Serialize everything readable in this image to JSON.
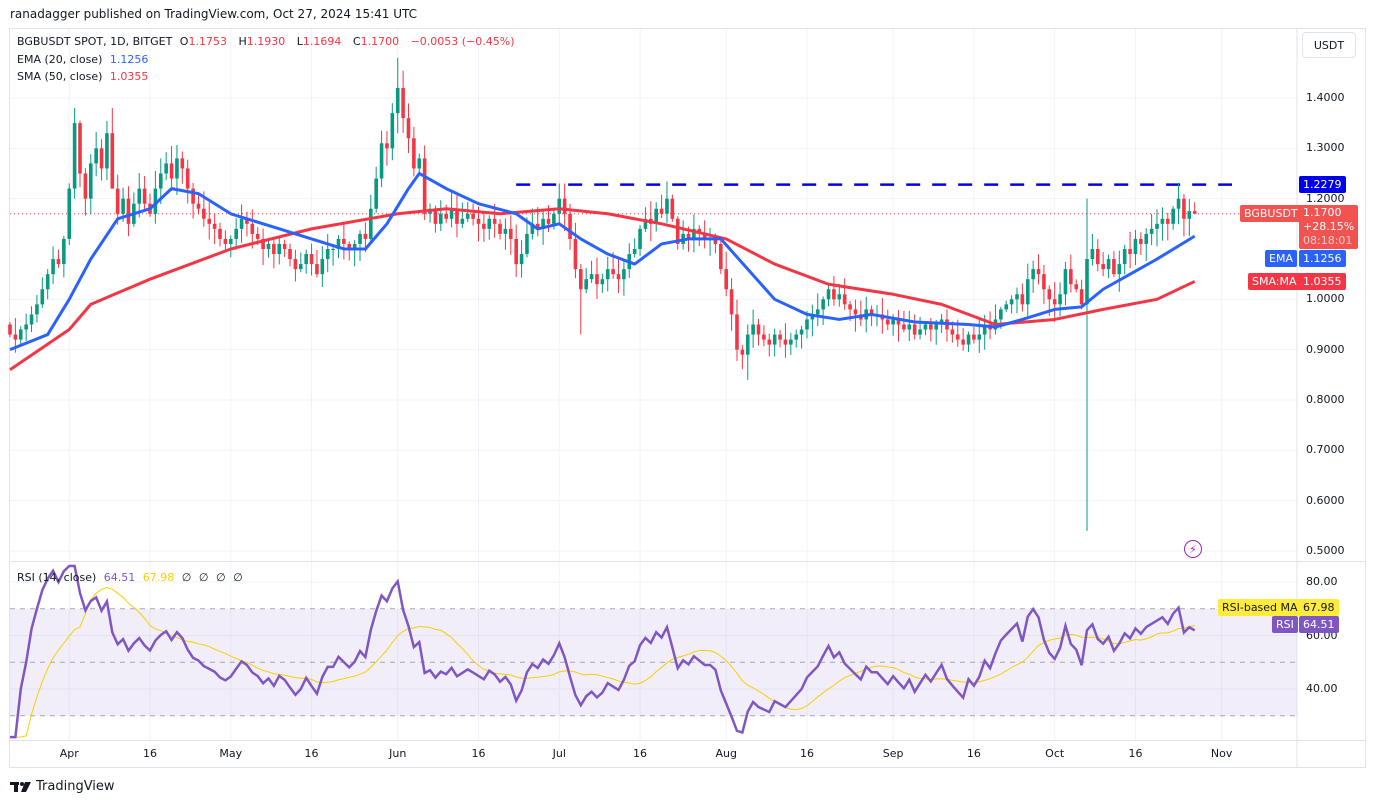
{
  "publish_line": "ranadagger published on TradingView.com, Oct 27, 2024 15:41 UTC",
  "legend": {
    "symbol": "BGBUSDT SPOT, 1D, BITGET",
    "o_label": "O",
    "o": "1.1753",
    "h_label": "H",
    "h": "1.1930",
    "l_label": "L",
    "l": "1.1694",
    "c_label": "C",
    "c": "1.1700",
    "change": "−0.0053 (−0.45%)",
    "ema_label": "EMA (20, close)",
    "ema_value": "1.1256",
    "sma_label": "SMA (50, close)",
    "sma_value": "1.0355",
    "rsi_label": "RSI (14, close)",
    "rsi_value": "64.51",
    "rsi_ma_value": "67.98",
    "rsi_extra": [
      "∅",
      "∅",
      "∅",
      "∅"
    ]
  },
  "currency_button": "USDT",
  "price_tags": {
    "resistance": "1.2279",
    "symbol": "BGBUSDT",
    "last": "1.1700",
    "pct": "+28.15%",
    "countdown": "08:18:01",
    "ema_label": "EMA",
    "ema": "1.1256",
    "sma_label": "SMA:MA",
    "sma": "1.0355",
    "rsi_ma_label": "RSI-based MA",
    "rsi_ma": "67.98",
    "rsi_label": "RSI",
    "rsi": "64.51"
  },
  "branding": "TradingView",
  "colors": {
    "up": "#089981",
    "down": "#f23645",
    "ema": "#2962ff",
    "sma": "#f23645",
    "rsi": "#7e57c2",
    "rsi_ma": "#f5d000",
    "resistance": "#0000ee"
  },
  "chart_data": {
    "type": "candlestick",
    "x_range": [
      "2024-03-21",
      "2024-10-27"
    ],
    "y_range": [
      0.5,
      1.45
    ],
    "y_ticks": [
      "1.4000",
      "1.3000",
      "1.2000",
      "1.0000",
      "0.9000",
      "0.8000",
      "0.7000",
      "0.6000",
      "0.5000"
    ],
    "x_ticks": [
      {
        "label": "Apr",
        "date": "2024-04-01"
      },
      {
        "label": "16",
        "date": "2024-04-16"
      },
      {
        "label": "May",
        "date": "2024-05-01"
      },
      {
        "label": "16",
        "date": "2024-05-16"
      },
      {
        "label": "Jun",
        "date": "2024-06-01"
      },
      {
        "label": "16",
        "date": "2024-06-16"
      },
      {
        "label": "Jul",
        "date": "2024-07-01"
      },
      {
        "label": "16",
        "date": "2024-07-16"
      },
      {
        "label": "Aug",
        "date": "2024-08-01"
      },
      {
        "label": "16",
        "date": "2024-08-16"
      },
      {
        "label": "Sep",
        "date": "2024-09-01"
      },
      {
        "label": "16",
        "date": "2024-09-16"
      },
      {
        "label": "Oct",
        "date": "2024-10-01"
      },
      {
        "label": "16",
        "date": "2024-10-16"
      },
      {
        "label": "Nov",
        "date": "2024-11-01"
      }
    ],
    "first_open": 0.95,
    "daily_closes": [
      0.93,
      0.92,
      0.94,
      0.95,
      0.97,
      0.99,
      1.02,
      1.05,
      1.08,
      1.07,
      1.12,
      1.22,
      1.35,
      1.25,
      1.2,
      1.27,
      1.3,
      1.26,
      1.33,
      1.22,
      1.17,
      1.2,
      1.15,
      1.19,
      1.22,
      1.19,
      1.17,
      1.22,
      1.25,
      1.27,
      1.24,
      1.28,
      1.26,
      1.22,
      1.19,
      1.18,
      1.16,
      1.15,
      1.14,
      1.12,
      1.11,
      1.12,
      1.14,
      1.16,
      1.15,
      1.13,
      1.12,
      1.1,
      1.11,
      1.09,
      1.11,
      1.1,
      1.08,
      1.06,
      1.07,
      1.09,
      1.07,
      1.05,
      1.08,
      1.1,
      1.1,
      1.12,
      1.11,
      1.1,
      1.11,
      1.13,
      1.12,
      1.18,
      1.24,
      1.31,
      1.3,
      1.37,
      1.42,
      1.36,
      1.32,
      1.26,
      1.28,
      1.17,
      1.18,
      1.15,
      1.17,
      1.16,
      1.18,
      1.15,
      1.16,
      1.17,
      1.16,
      1.15,
      1.14,
      1.16,
      1.15,
      1.13,
      1.14,
      1.12,
      1.07,
      1.09,
      1.13,
      1.15,
      1.14,
      1.16,
      1.15,
      1.17,
      1.2,
      1.17,
      1.12,
      1.06,
      1.02,
      1.04,
      1.05,
      1.03,
      1.04,
      1.06,
      1.05,
      1.04,
      1.06,
      1.09,
      1.1,
      1.14,
      1.16,
      1.15,
      1.18,
      1.17,
      1.2,
      1.16,
      1.11,
      1.13,
      1.12,
      1.14,
      1.13,
      1.12,
      1.12,
      1.11,
      1.06,
      1.02,
      0.97,
      0.9,
      0.89,
      0.93,
      0.95,
      0.93,
      0.92,
      0.91,
      0.93,
      0.92,
      0.91,
      0.92,
      0.93,
      0.94,
      0.96,
      0.97,
      0.98,
      1.0,
      1.02,
      1.0,
      1.01,
      0.99,
      0.98,
      0.97,
      0.96,
      0.98,
      0.97,
      0.97,
      0.96,
      0.95,
      0.96,
      0.95,
      0.94,
      0.95,
      0.93,
      0.94,
      0.95,
      0.94,
      0.95,
      0.96,
      0.94,
      0.93,
      0.92,
      0.91,
      0.93,
      0.92,
      0.93,
      0.95,
      0.94,
      0.96,
      0.98,
      0.99,
      1.0,
      1.01,
      0.99,
      1.04,
      1.06,
      1.05,
      1.02,
      1.0,
      0.99,
      1.01,
      1.06,
      1.03,
      1.02,
      0.99,
      1.08,
      1.1,
      1.07,
      1.06,
      1.08,
      1.05,
      1.07,
      1.1,
      1.09,
      1.12,
      1.11,
      1.13,
      1.14,
      1.15,
      1.16,
      1.15,
      1.18,
      1.2,
      1.16,
      1.1753,
      1.17
    ],
    "notable_wicks": [
      {
        "date": "2024-04-02",
        "high": 1.38,
        "low": 1.2
      },
      {
        "date": "2024-04-09",
        "high": 1.38,
        "low": 1.22
      },
      {
        "date": "2024-06-01",
        "high": 1.48,
        "low": 1.33
      },
      {
        "date": "2024-07-01",
        "high": 1.23,
        "low": 1.15
      },
      {
        "date": "2024-07-05",
        "high": 1.07,
        "low": 0.93
      },
      {
        "date": "2024-08-05",
        "high": 0.95,
        "low": 0.84
      },
      {
        "date": "2024-10-07",
        "high": 1.2,
        "low": 0.54
      },
      {
        "date": "2024-10-27",
        "high": 1.193,
        "low": 1.1694
      }
    ],
    "resistance_level": {
      "value": 1.2279,
      "from": "2024-06-23",
      "style": "dashed"
    },
    "ema20": [
      [
        "2024-03-21",
        0.9
      ],
      [
        "2024-03-28",
        0.93
      ],
      [
        "2024-04-01",
        1.0
      ],
      [
        "2024-04-05",
        1.08
      ],
      [
        "2024-04-10",
        1.16
      ],
      [
        "2024-04-16",
        1.18
      ],
      [
        "2024-04-20",
        1.22
      ],
      [
        "2024-04-25",
        1.21
      ],
      [
        "2024-05-01",
        1.17
      ],
      [
        "2024-05-10",
        1.14
      ],
      [
        "2024-05-16",
        1.12
      ],
      [
        "2024-05-22",
        1.1
      ],
      [
        "2024-05-26",
        1.1
      ],
      [
        "2024-05-30",
        1.15
      ],
      [
        "2024-06-03",
        1.22
      ],
      [
        "2024-06-05",
        1.25
      ],
      [
        "2024-06-10",
        1.22
      ],
      [
        "2024-06-16",
        1.19
      ],
      [
        "2024-06-23",
        1.17
      ],
      [
        "2024-06-27",
        1.14
      ],
      [
        "2024-07-01",
        1.15
      ],
      [
        "2024-07-05",
        1.12
      ],
      [
        "2024-07-10",
        1.09
      ],
      [
        "2024-07-15",
        1.07
      ],
      [
        "2024-07-20",
        1.11
      ],
      [
        "2024-07-25",
        1.12
      ],
      [
        "2024-07-31",
        1.12
      ],
      [
        "2024-08-05",
        1.06
      ],
      [
        "2024-08-10",
        1.0
      ],
      [
        "2024-08-16",
        0.97
      ],
      [
        "2024-08-22",
        0.96
      ],
      [
        "2024-08-28",
        0.97
      ],
      [
        "2024-09-05",
        0.955
      ],
      [
        "2024-09-15",
        0.95
      ],
      [
        "2024-09-20",
        0.945
      ],
      [
        "2024-09-25",
        0.96
      ],
      [
        "2024-10-01",
        0.98
      ],
      [
        "2024-10-06",
        0.985
      ],
      [
        "2024-10-10",
        1.02
      ],
      [
        "2024-10-15",
        1.05
      ],
      [
        "2024-10-20",
        1.08
      ],
      [
        "2024-10-27",
        1.1256
      ]
    ],
    "sma50": [
      [
        "2024-03-21",
        0.86
      ],
      [
        "2024-04-01",
        0.94
      ],
      [
        "2024-04-05",
        0.99
      ],
      [
        "2024-04-16",
        1.04
      ],
      [
        "2024-05-01",
        1.1
      ],
      [
        "2024-05-16",
        1.14
      ],
      [
        "2024-06-01",
        1.17
      ],
      [
        "2024-06-10",
        1.18
      ],
      [
        "2024-06-20",
        1.17
      ],
      [
        "2024-07-01",
        1.18
      ],
      [
        "2024-07-10",
        1.17
      ],
      [
        "2024-07-20",
        1.15
      ],
      [
        "2024-08-01",
        1.12
      ],
      [
        "2024-08-10",
        1.07
      ],
      [
        "2024-08-20",
        1.03
      ],
      [
        "2024-09-01",
        1.01
      ],
      [
        "2024-09-10",
        0.99
      ],
      [
        "2024-09-20",
        0.95
      ],
      [
        "2024-10-01",
        0.96
      ],
      [
        "2024-10-10",
        0.98
      ],
      [
        "2024-10-20",
        1.0
      ],
      [
        "2024-10-27",
        1.0355
      ]
    ],
    "rsi": {
      "period": 14,
      "ma_period": 14,
      "y_ticks": [
        "80.00",
        "60.00",
        "40.00"
      ],
      "bands": [
        70,
        50,
        30
      ]
    }
  }
}
